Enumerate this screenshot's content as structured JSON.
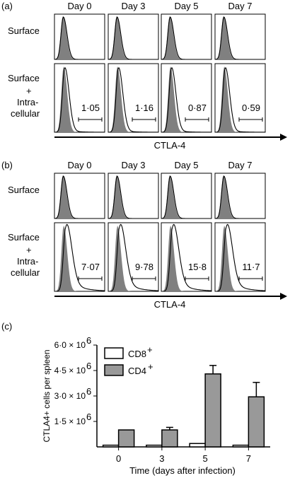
{
  "colors": {
    "hist_fill": "#808080",
    "cd4_bar": "#999999",
    "cd8_bar": "#ffffff",
    "line": "#000000"
  },
  "panel_a": {
    "label": "(a)",
    "days": [
      "Day 0",
      "Day 3",
      "Day 5",
      "Day 7"
    ],
    "row_labels": {
      "surface": "Surface",
      "intra": [
        "Surface",
        "+",
        "Intra-",
        "cellular"
      ]
    },
    "values": [
      "1·05",
      "1·16",
      "0·87",
      "0·59"
    ],
    "axis_label": "CTLA-4"
  },
  "panel_b": {
    "label": "(b)",
    "days": [
      "Day 0",
      "Day 3",
      "Day 5",
      "Day 7"
    ],
    "row_labels": {
      "surface": "Surface",
      "intra": [
        "Surface",
        "+",
        "Intra-",
        "cellular"
      ]
    },
    "values": [
      "7·07",
      "9·78",
      "15·8",
      "11·7"
    ],
    "axis_label": "CTLA-4"
  },
  "panel_c": {
    "label": "(c)"
  },
  "chart_data": {
    "type": "bar",
    "categories": [
      "0",
      "3",
      "5",
      "7"
    ],
    "xlabel": "Time (days after infection)",
    "ylabel": "CTLA4+ cells per spleen",
    "ylim": [
      0,
      6000000
    ],
    "yticks": [
      1500000,
      3000000,
      4500000,
      6000000
    ],
    "ytick_labels": [
      "1·5 × 10",
      "3·0 × 10",
      "4·5 × 10",
      "6·0 × 10"
    ],
    "ytick_exponent": "6",
    "series": [
      {
        "name": "CD8+",
        "values": [
          100000,
          100000,
          200000,
          100000
        ],
        "err": [
          0,
          0,
          0,
          0
        ]
      },
      {
        "name": "CD4+",
        "values": [
          1000000,
          1000000,
          4300000,
          2950000
        ],
        "err": [
          0,
          150000,
          500000,
          850000
        ]
      }
    ],
    "legend": [
      "CD8",
      "CD4"
    ],
    "legend_sup": "+",
    "legend_position": "top-left"
  }
}
